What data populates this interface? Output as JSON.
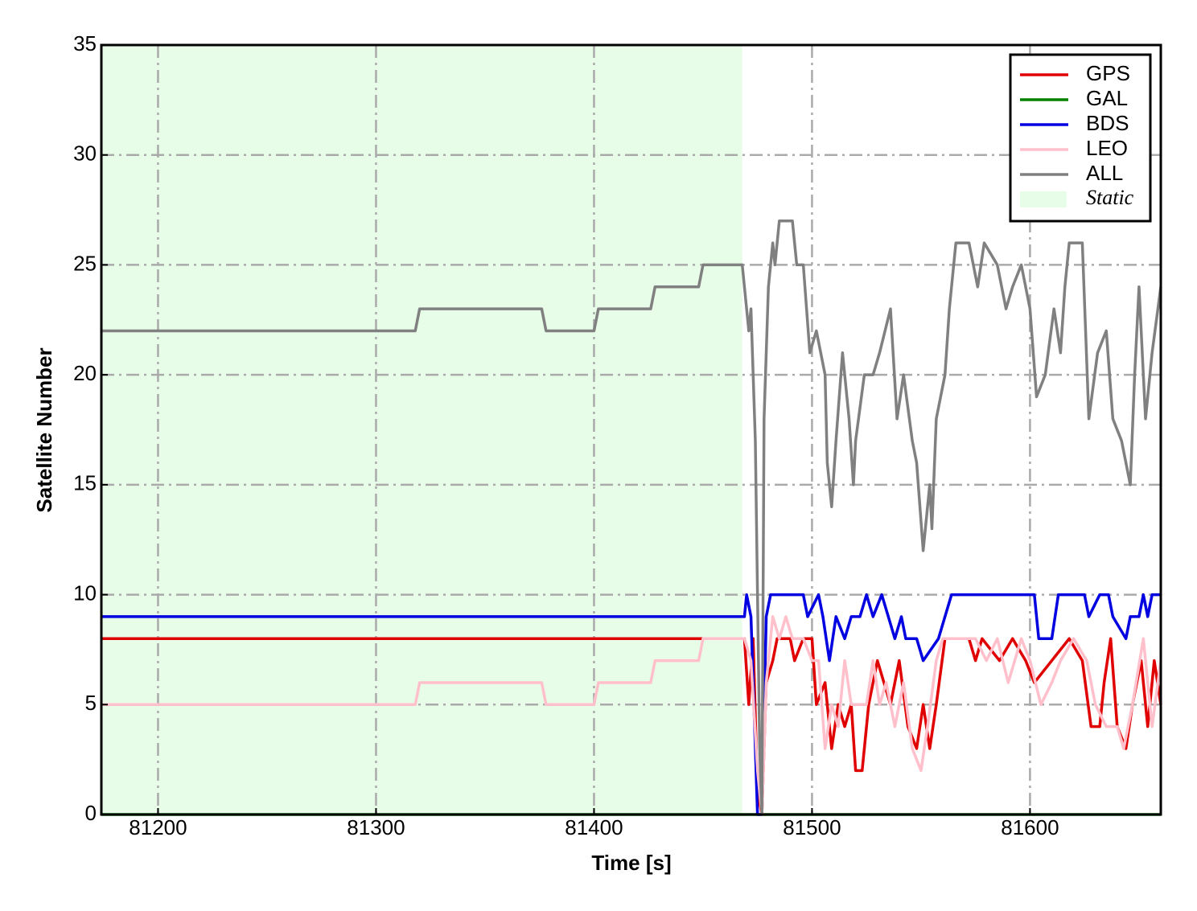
{
  "chart_data": {
    "type": "line",
    "xlabel": "Time [s]",
    "ylabel": "Satellite Number",
    "xlim": [
      81174,
      81660
    ],
    "ylim": [
      0,
      35
    ],
    "xticks": [
      81200,
      81300,
      81400,
      81500,
      81600
    ],
    "yticks": [
      0,
      5,
      10,
      15,
      20,
      25,
      30,
      35
    ],
    "grid": true,
    "legend": "upper right",
    "shaded_region": {
      "name": "Static",
      "color": "#e8fde8",
      "x": [
        81174,
        81468
      ]
    },
    "series": [
      {
        "name": "GPS",
        "color": "#e00000",
        "x": [
          81174,
          81469,
          81471,
          81473,
          81475,
          81477,
          81479,
          81482,
          81484,
          81490,
          81492,
          81496,
          81500,
          81502,
          81506,
          81509,
          81512,
          81515,
          81518,
          81520,
          81523,
          81526,
          81530,
          81533,
          81536,
          81540,
          81544,
          81548,
          81551,
          81554,
          81557,
          81561,
          81572,
          81575,
          81578,
          81586,
          81592,
          81598,
          81602,
          81610,
          81618,
          81624,
          81628,
          81632,
          81634,
          81637,
          81640,
          81644,
          81647,
          81651,
          81654,
          81657,
          81660
        ],
        "values": [
          8,
          8,
          5,
          8,
          1,
          0,
          6,
          7,
          8,
          8,
          7,
          8,
          8,
          5,
          6,
          3,
          5,
          4,
          5,
          2,
          2,
          5,
          7,
          6,
          5,
          7,
          4,
          3,
          5,
          3,
          5,
          8,
          8,
          7,
          8,
          7,
          8,
          7,
          6,
          7,
          8,
          7,
          4,
          4,
          6,
          8,
          4,
          3,
          5,
          7,
          4,
          7,
          5
        ]
      },
      {
        "name": "GAL",
        "color": "#008000",
        "x": [
          81174,
          81660
        ],
        "values": [
          0,
          0
        ]
      },
      {
        "name": "BDS",
        "color": "#0000e0",
        "x": [
          81174,
          81469,
          81470,
          81472,
          81475,
          81477,
          81479,
          81481,
          81496,
          81498,
          81503,
          81505,
          81508,
          81511,
          81515,
          81518,
          81522,
          81525,
          81528,
          81532,
          81535,
          81538,
          81541,
          81543,
          81548,
          81551,
          81558,
          81561,
          81564,
          81602,
          81604,
          81610,
          81613,
          81625,
          81627,
          81632,
          81636,
          81638,
          81644,
          81646,
          81650,
          81652,
          81654,
          81656,
          81660
        ],
        "values": [
          9,
          9,
          10,
          9,
          0,
          0,
          9,
          10,
          10,
          9,
          10,
          9,
          7,
          9,
          8,
          9,
          9,
          10,
          9,
          10,
          9,
          8,
          9,
          8,
          8,
          7,
          8,
          9,
          10,
          10,
          8,
          8,
          10,
          10,
          9,
          10,
          10,
          9,
          8,
          9,
          9,
          10,
          9,
          10,
          10
        ]
      },
      {
        "name": "LEO",
        "color": "#ffc0cb",
        "x": [
          81174,
          81318,
          81320,
          81376,
          81378,
          81400,
          81402,
          81426,
          81428,
          81448,
          81450,
          81469,
          81472,
          81475,
          81477,
          81479,
          81482,
          81485,
          81488,
          81491,
          81496,
          81500,
          81503,
          81506,
          81509,
          81512,
          81515,
          81518,
          81522,
          81525,
          81528,
          81531,
          81534,
          81538,
          81542,
          81546,
          81550,
          81553,
          81557,
          81560,
          81575,
          81580,
          81585,
          81590,
          81596,
          81600,
          81605,
          81610,
          81614,
          81620,
          81626,
          81630,
          81635,
          81640,
          81643,
          81647,
          81652,
          81656,
          81660
        ],
        "values": [
          5,
          5,
          6,
          6,
          5,
          5,
          6,
          6,
          7,
          7,
          8,
          8,
          7,
          2,
          0,
          6,
          9,
          8,
          9,
          8,
          8,
          7,
          7,
          3,
          5,
          4,
          7,
          5,
          5,
          5,
          7,
          5,
          6,
          4,
          6,
          3,
          2,
          4,
          7,
          8,
          8,
          7,
          8,
          6,
          8,
          7,
          5,
          6,
          7,
          8,
          7,
          5,
          4,
          4,
          3,
          5,
          8,
          4,
          7
        ]
      },
      {
        "name": "ALL",
        "color": "#808080",
        "x": [
          81174,
          81318,
          81320,
          81376,
          81378,
          81400,
          81402,
          81426,
          81428,
          81448,
          81450,
          81468,
          81471,
          81472,
          81474,
          81476,
          81477,
          81478,
          81480,
          81482,
          81483,
          81485,
          81491,
          81493,
          81496,
          81499,
          81502,
          81506,
          81507,
          81509,
          81511,
          81514,
          81517,
          81519,
          81520,
          81524,
          81528,
          81531,
          81536,
          81539,
          81542,
          81546,
          81548,
          81551,
          81554,
          81555,
          81557,
          81561,
          81563,
          81566,
          81572,
          81576,
          81579,
          81585,
          81589,
          81592,
          81596,
          81600,
          81603,
          81607,
          81611,
          81614,
          81616,
          81618,
          81624,
          81627,
          81631,
          81635,
          81638,
          81642,
          81646,
          81648,
          81650,
          81653,
          81656,
          81660
        ],
        "values": [
          22,
          22,
          23,
          23,
          22,
          22,
          23,
          23,
          24,
          24,
          25,
          25,
          22,
          23,
          17,
          3,
          0,
          18,
          24,
          26,
          25,
          27,
          27,
          25,
          25,
          21,
          22,
          20,
          16,
          14,
          17,
          21,
          18,
          15,
          17,
          20,
          20,
          21,
          23,
          18,
          20,
          17,
          16,
          12,
          15,
          13,
          18,
          20,
          23,
          26,
          26,
          24,
          26,
          25,
          23,
          24,
          25,
          23,
          19,
          20,
          23,
          21,
          24,
          26,
          26,
          18,
          21,
          22,
          18,
          17,
          15,
          20,
          24,
          18,
          21,
          24
        ]
      }
    ]
  }
}
